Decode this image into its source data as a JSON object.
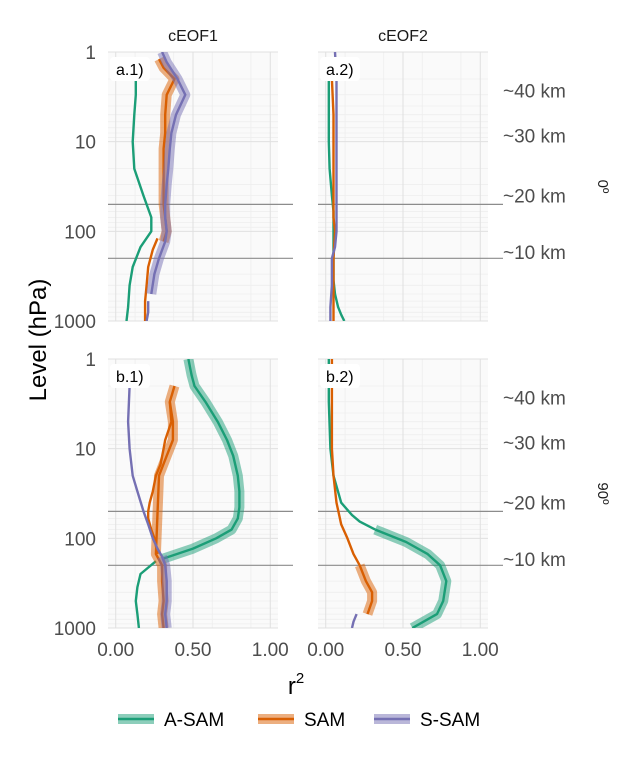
{
  "chart_data": {
    "type": "line",
    "ylabel": "Level (hPa)",
    "xlabel": "r",
    "xlabel_sup": "2",
    "xlim": [
      -0.05,
      1.05
    ],
    "ylim": [
      1,
      1000
    ],
    "y_scale": "log",
    "y_reversed": true,
    "x_ticks": [
      "0.00",
      "0.50",
      "1.00"
    ],
    "x_tick_values": [
      0,
      0.5,
      1
    ],
    "y_ticks": [
      "1",
      "10",
      "100",
      "1000"
    ],
    "y_tick_values": [
      1,
      10,
      100,
      1000
    ],
    "col_titles": [
      "cEOF1",
      "cEOF2"
    ],
    "row_labels": [
      "0º",
      "90º"
    ],
    "altitude_labels": [
      "~40 km",
      "~30 km",
      "~20 km",
      "~10 km"
    ],
    "altitude_levels": [
      2.7,
      8.5,
      40,
      170
    ],
    "hlines": [
      50,
      200
    ],
    "colors": {
      "A-SAM": "#1b9e77",
      "SAM": "#d95f02",
      "S-SAM": "#7570b3"
    },
    "legend": {
      "position": "bottom",
      "entries": [
        "A-SAM",
        "SAM",
        "S-SAM"
      ]
    },
    "panels": [
      {
        "label": "a.1)",
        "row": 0,
        "col": 0,
        "series": [
          {
            "name": "A-SAM",
            "y": [
              2,
              3,
              5,
              10,
              20,
              40,
              70,
              100,
              150,
              250,
              400,
              700,
              1000
            ],
            "x": [
              0.13,
              0.13,
              0.12,
              0.11,
              0.12,
              0.18,
              0.23,
              0.23,
              0.16,
              0.11,
              0.09,
              0.08,
              0.07
            ],
            "sig_y": [],
            "sig_x": []
          },
          {
            "name": "SAM",
            "y": [
              120,
              160,
              250,
              400,
              600,
              800,
              1000
            ],
            "x": [
              0.27,
              0.24,
              0.21,
              0.2,
              0.19,
              0.19,
              0.19
            ],
            "sig_y": [
              1.2,
              1.5,
              2,
              3,
              5,
              8,
              12,
              20,
              30,
              50,
              70,
              100,
              130
            ],
            "sig_x": [
              0.28,
              0.31,
              0.38,
              0.33,
              0.32,
              0.32,
              0.31,
              0.31,
              0.31,
              0.31,
              0.32,
              0.33,
              0.31
            ]
          },
          {
            "name": "S-SAM",
            "y": [
              600,
              800,
              1000
            ],
            "x": [
              0.21,
              0.21,
              0.2
            ],
            "sig_y": [
              1,
              1.3,
              2,
              3,
              5,
              8,
              12,
              20,
              30,
              50,
              70,
              100,
              130,
              200,
              300,
              500
            ],
            "sig_x": [
              0.3,
              0.33,
              0.4,
              0.45,
              0.39,
              0.36,
              0.35,
              0.34,
              0.33,
              0.32,
              0.32,
              0.33,
              0.32,
              0.28,
              0.25,
              0.23
            ]
          }
        ]
      },
      {
        "label": "a.2)",
        "row": 0,
        "col": 1,
        "series": [
          {
            "name": "A-SAM",
            "y": [
              2,
              5,
              10,
              20,
              40,
              60,
              100,
              200,
              350,
              500,
              700,
              850,
              1000
            ],
            "x": [
              0.02,
              0.02,
              0.02,
              0.025,
              0.04,
              0.05,
              0.05,
              0.05,
              0.05,
              0.06,
              0.08,
              0.1,
              0.12
            ],
            "sig_y": [],
            "sig_x": []
          },
          {
            "name": "SAM",
            "y": [
              2,
              5,
              10,
              20,
              40,
              70,
              100,
              200,
              400,
              700,
              1000
            ],
            "x": [
              0.04,
              0.05,
              0.05,
              0.05,
              0.05,
              0.05,
              0.06,
              0.05,
              0.05,
              0.05,
              0.05
            ],
            "sig_y": [],
            "sig_x": []
          },
          {
            "name": "S-SAM",
            "y": [
              1,
              2,
              5,
              10,
              20,
              40,
              70,
              100,
              150,
              200,
              400,
              700,
              1000
            ],
            "x": [
              0.06,
              0.07,
              0.07,
              0.07,
              0.07,
              0.07,
              0.07,
              0.07,
              0.06,
              0.04,
              0.04,
              0.03,
              0.03
            ],
            "sig_y": [],
            "sig_x": []
          }
        ]
      },
      {
        "label": "b.1)",
        "row": 1,
        "col": 0,
        "series": [
          {
            "name": "A-SAM",
            "y": [
              180,
              250,
              350,
              500,
              700,
              1000
            ],
            "x": [
              0.26,
              0.16,
              0.14,
              0.13,
              0.14,
              0.15
            ],
            "sig_y": [
              1,
              1.5,
              2,
              3,
              5,
              8,
              12,
              20,
              30,
              45,
              60,
              80,
              100,
              130,
              170
            ],
            "sig_x": [
              0.47,
              0.49,
              0.51,
              0.58,
              0.66,
              0.72,
              0.76,
              0.79,
              0.8,
              0.8,
              0.79,
              0.75,
              0.65,
              0.5,
              0.3
            ]
          },
          {
            "name": "SAM",
            "y": [
              3,
              5,
              8,
              10,
              15,
              20,
              30,
              40,
              50,
              60,
              80,
              100,
              150
            ],
            "x": [
              0.35,
              0.36,
              0.32,
              0.31,
              0.29,
              0.26,
              0.24,
              0.22,
              0.21,
              0.21,
              0.23,
              0.25,
              0.27
            ],
            "sig_y": [
              2,
              3,
              5,
              8,
              12,
              20,
              150,
              200,
              300,
              500,
              700,
              1000
            ],
            "sig_x": [
              0.38,
              0.35,
              0.37,
              0.37,
              0.33,
              0.28,
              0.26,
              0.3,
              0.3,
              0.31,
              0.3,
              0.31
            ]
          },
          {
            "name": "S-SAM",
            "y": [
              2,
              5,
              10,
              20,
              30,
              50,
              70,
              100,
              130,
              160
            ],
            "x": [
              0.09,
              0.08,
              0.09,
              0.11,
              0.14,
              0.18,
              0.21,
              0.24,
              0.27,
              0.3
            ],
            "sig_y": [
              160,
              200,
              300,
              500,
              700,
              1000
            ],
            "sig_x": [
              0.3,
              0.32,
              0.33,
              0.33,
              0.32,
              0.33
            ]
          }
        ]
      },
      {
        "label": "b.2)",
        "row": 1,
        "col": 1,
        "series": [
          {
            "name": "A-SAM",
            "y": [
              1,
              3,
              10,
              20,
              40,
              55,
              65,
              80
            ],
            "x": [
              0.02,
              0.02,
              0.03,
              0.05,
              0.1,
              0.17,
              0.22,
              0.32
            ],
            "sig_y": [
              80,
              110,
              150,
              200,
              300,
              500,
              700,
              1000
            ],
            "sig_x": [
              0.32,
              0.52,
              0.66,
              0.74,
              0.78,
              0.76,
              0.72,
              0.56
            ]
          },
          {
            "name": "SAM",
            "y": [
              1,
              5,
              10,
              20,
              40,
              70,
              100,
              150,
              200
            ],
            "x": [
              0.04,
              0.04,
              0.04,
              0.05,
              0.07,
              0.1,
              0.14,
              0.18,
              0.22
            ],
            "sig_y": [
              200,
              300,
              400,
              500,
              700
            ],
            "sig_x": [
              0.22,
              0.26,
              0.3,
              0.3,
              0.27
            ]
          },
          {
            "name": "S-SAM",
            "y": [
              700,
              850,
              1000
            ],
            "x": [
              0.2,
              0.18,
              0.17
            ],
            "sig_y": [],
            "sig_x": []
          }
        ]
      }
    ]
  }
}
